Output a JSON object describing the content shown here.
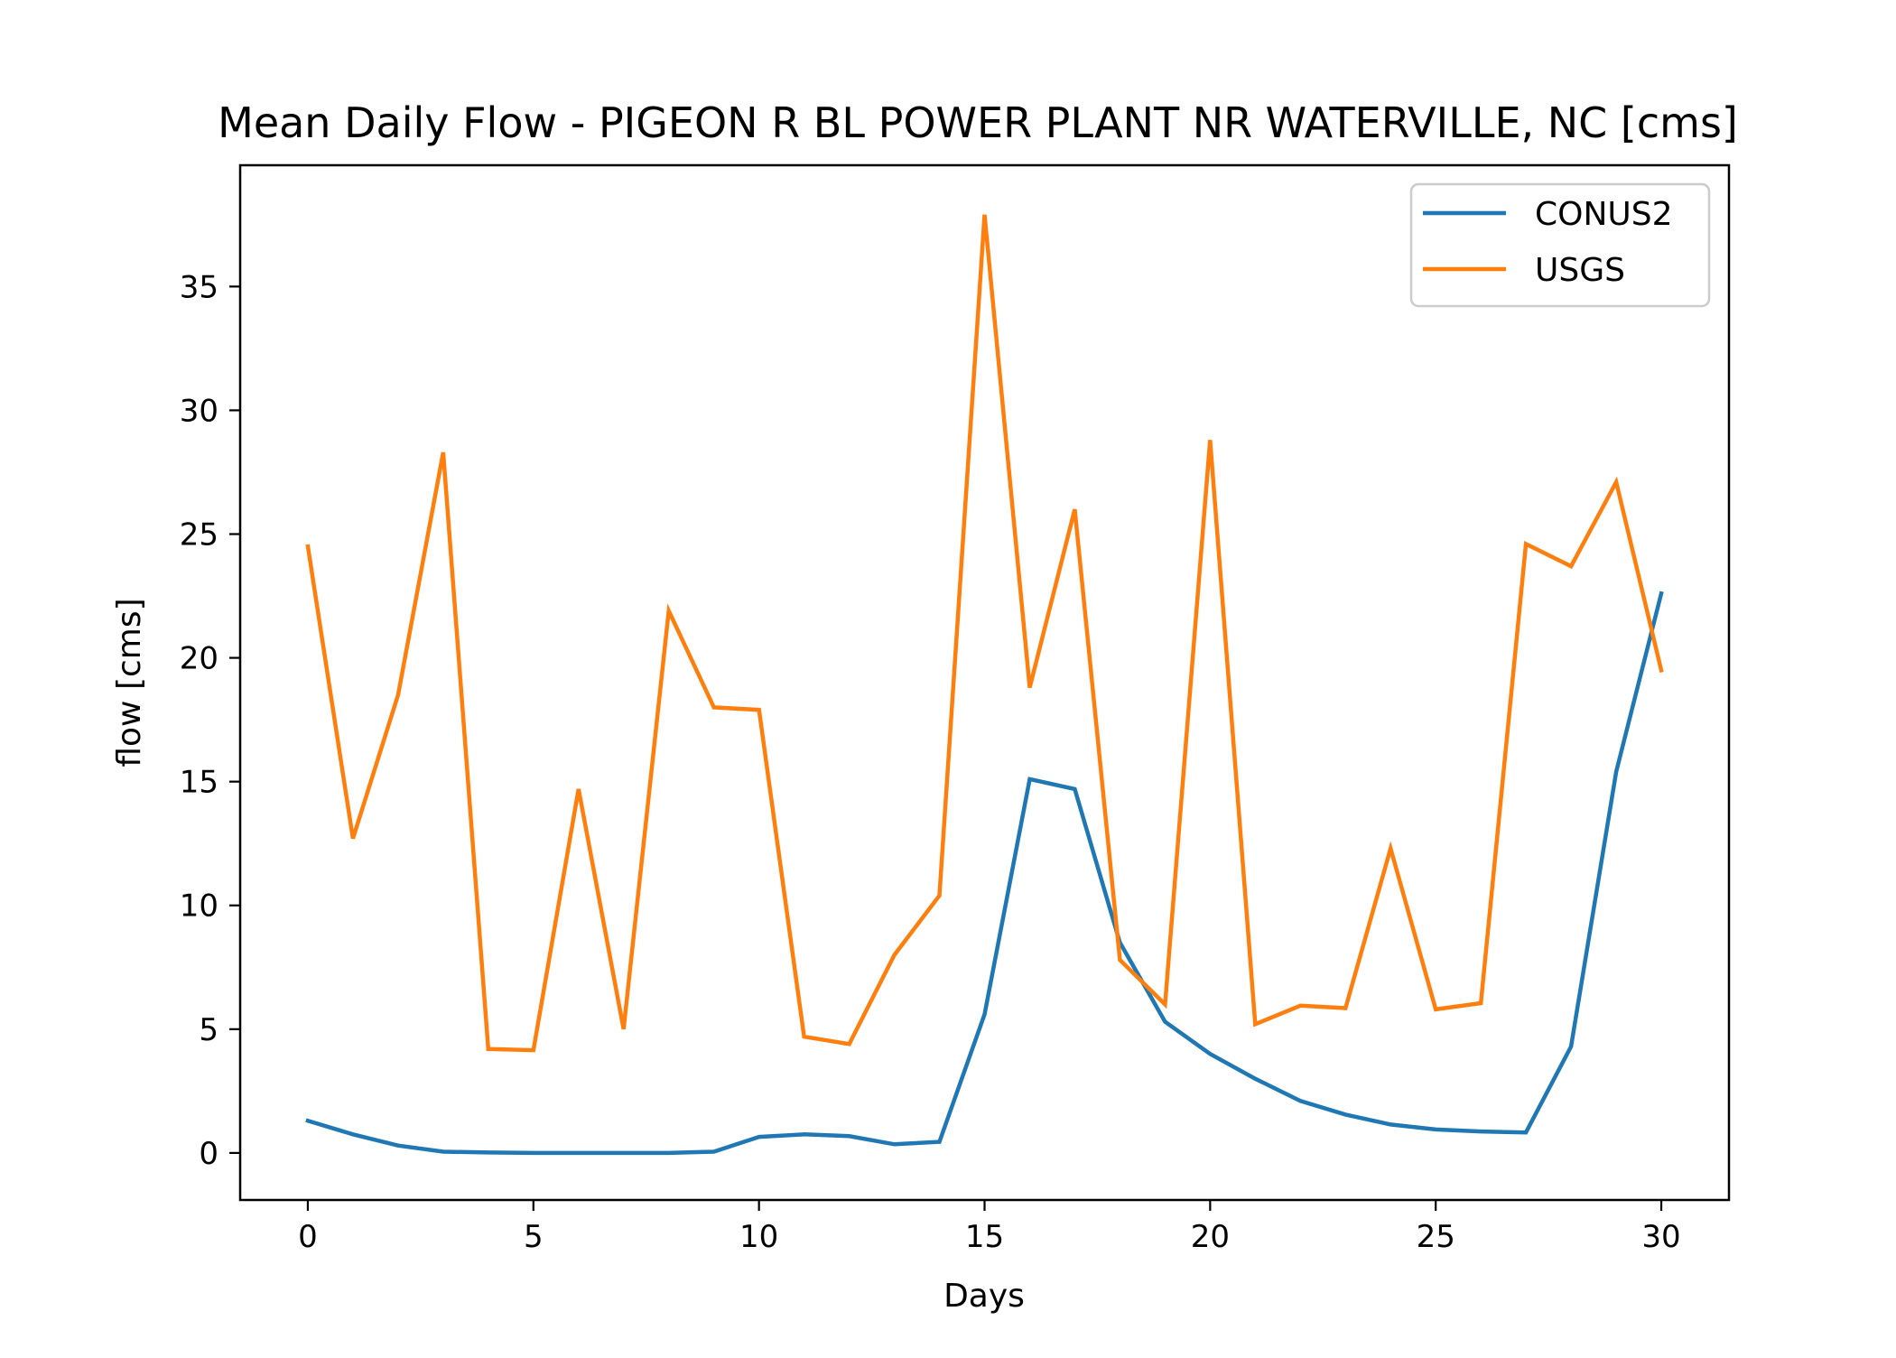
{
  "chart_data": {
    "type": "line",
    "title": "Mean Daily Flow - PIGEON R BL POWER PLANT NR WATERVILLE, NC [cms]",
    "xlabel": "Days",
    "ylabel": "flow [cms]",
    "xlim": [
      -1.5,
      31.5
    ],
    "ylim": [
      -1.9,
      39.9
    ],
    "xticks": [
      0,
      5,
      10,
      15,
      20,
      25,
      30
    ],
    "yticks": [
      0,
      5,
      10,
      15,
      20,
      25,
      30,
      35
    ],
    "grid": false,
    "legend_position": "top-right",
    "x": [
      0,
      1,
      2,
      3,
      4,
      5,
      6,
      7,
      8,
      9,
      10,
      11,
      12,
      13,
      14,
      15,
      16,
      17,
      18,
      19,
      20,
      21,
      22,
      23,
      24,
      25,
      26,
      27,
      28,
      29,
      30
    ],
    "series": [
      {
        "name": "CONUS2",
        "color": "#1f77b4",
        "values": [
          1.3,
          0.75,
          0.3,
          0.05,
          0.02,
          0.0,
          0.0,
          0.0,
          0.0,
          0.05,
          0.65,
          0.75,
          0.68,
          0.35,
          0.45,
          5.6,
          15.1,
          14.7,
          8.5,
          5.3,
          4.0,
          3.0,
          2.1,
          1.55,
          1.15,
          0.95,
          0.87,
          0.83,
          4.3,
          15.4,
          22.6
        ]
      },
      {
        "name": "USGS",
        "color": "#ff7f0e",
        "values": [
          24.5,
          12.7,
          18.5,
          28.3,
          4.2,
          4.15,
          14.7,
          5.0,
          21.9,
          18.0,
          17.9,
          4.7,
          4.4,
          8.0,
          10.4,
          37.9,
          18.8,
          26.0,
          7.8,
          6.0,
          28.8,
          5.2,
          5.95,
          5.85,
          12.3,
          5.8,
          6.05,
          24.6,
          23.7,
          27.1,
          19.5
        ]
      }
    ]
  }
}
